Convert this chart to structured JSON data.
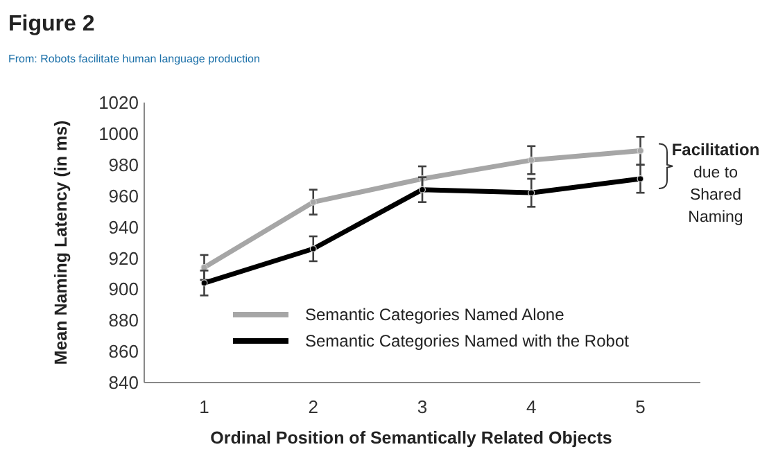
{
  "chart_data": {
    "type": "line",
    "title": "Figure 2",
    "subtitle": "From: Robots facilitate human language production",
    "xlabel": "Ordinal Position of Semantically Related Objects",
    "ylabel": "Mean Naming Latency (in ms)",
    "categories": [
      "1",
      "2",
      "3",
      "4",
      "5"
    ],
    "series": [
      {
        "name": "Semantic Categories Named Alone",
        "color": "#a6a6a6",
        "values": [
          914,
          956,
          971,
          983,
          989
        ],
        "errors": [
          8,
          8,
          8,
          9,
          9
        ]
      },
      {
        "name": "Semantic Categories Named with the Robot",
        "color": "#000000",
        "values": [
          904,
          926,
          964,
          962,
          971
        ],
        "errors": [
          8,
          8,
          8,
          9,
          9
        ]
      }
    ],
    "ylim": [
      840,
      1020
    ],
    "yticks": [
      840,
      860,
      880,
      900,
      920,
      940,
      960,
      980,
      1000,
      1020
    ],
    "grid": false,
    "legend": "bottom",
    "marker": "circle",
    "line_style": "solid",
    "annotations": [
      "Facilitation",
      "due to Shared Naming"
    ]
  }
}
